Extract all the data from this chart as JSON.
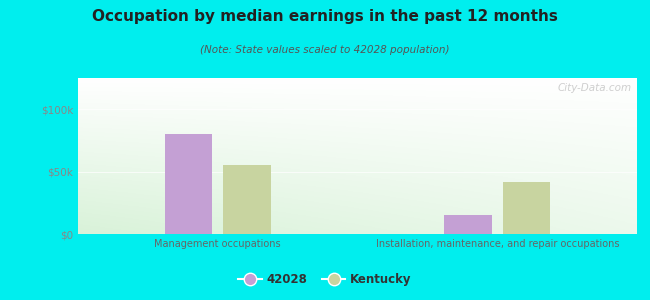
{
  "title": "Occupation by median earnings in the past 12 months",
  "subtitle": "(Note: State values scaled to 42028 population)",
  "categories": [
    "Management occupations",
    "Installation, maintenance, and repair occupations"
  ],
  "values_42028": [
    80000,
    15000
  ],
  "values_kentucky": [
    55000,
    42000
  ],
  "color_42028": "#c4a0d4",
  "color_kentucky": "#c8d4a0",
  "background_outer": "#00eeee",
  "background_chart_topleft": "#d8efd0",
  "background_chart_topright": "#f0faf0",
  "background_chart_bottom": "#c8e8c0",
  "ylim": [
    0,
    125000
  ],
  "yticks": [
    0,
    50000,
    100000
  ],
  "ytick_labels": [
    "$0",
    "$50k",
    "$100k"
  ],
  "legend_label_42028": "42028",
  "legend_label_kentucky": "Kentucky",
  "watermark": "City-Data.com",
  "title_color": "#222222",
  "subtitle_color": "#555555",
  "tick_color": "#888888",
  "xlabel_color": "#666666"
}
